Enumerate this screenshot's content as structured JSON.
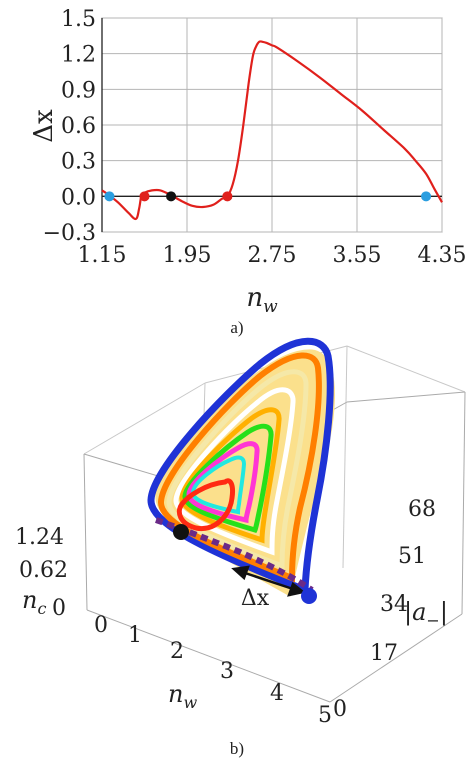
{
  "chart_data": [
    {
      "panel_label": "a)",
      "type": "line",
      "xlabel": "n",
      "xlabel_sub": "w",
      "ylabel": "Δx",
      "xlim": [
        1.15,
        4.35
      ],
      "ylim": [
        -0.3,
        1.5
      ],
      "x_ticks": [
        1.15,
        1.95,
        2.75,
        3.55,
        4.35
      ],
      "x_tick_labels": [
        "1.15",
        "1.95",
        "2.75",
        "3.55",
        "4.35"
      ],
      "y_ticks": [
        -0.3,
        0.0,
        0.3,
        0.6,
        0.9,
        1.2,
        1.5
      ],
      "y_tick_labels": [
        "−0.3",
        "0.0",
        "0.3",
        "0.6",
        "0.9",
        "1.2",
        "1.5"
      ],
      "grid": true,
      "series": [
        {
          "color": "#e0201c",
          "x": [
            1.15,
            1.2,
            1.3,
            1.4,
            1.47,
            1.5,
            1.52,
            1.55,
            1.62,
            1.7,
            1.8,
            1.9,
            2.0,
            2.1,
            2.2,
            2.28,
            2.33,
            2.38,
            2.43,
            2.48,
            2.53,
            2.57,
            2.6,
            2.63,
            2.66,
            2.7,
            2.75,
            2.8,
            3.0,
            3.2,
            3.4,
            3.6,
            3.8,
            4.0,
            4.1,
            4.2,
            4.28,
            4.35
          ],
          "y": [
            0.05,
            0.02,
            -0.05,
            -0.14,
            -0.19,
            -0.1,
            0.0,
            0.03,
            0.05,
            0.05,
            0.01,
            -0.04,
            -0.08,
            -0.09,
            -0.07,
            -0.02,
            0.0,
            0.1,
            0.3,
            0.6,
            0.95,
            1.18,
            1.26,
            1.3,
            1.3,
            1.29,
            1.27,
            1.25,
            1.13,
            1.0,
            0.86,
            0.72,
            0.56,
            0.4,
            0.3,
            0.19,
            0.06,
            -0.05
          ]
        }
      ],
      "points": [
        {
          "x": 1.22,
          "y": 0.0,
          "color": "#2a9ee0"
        },
        {
          "x": 1.55,
          "y": 0.0,
          "color": "#e0201c"
        },
        {
          "x": 1.8,
          "y": 0.0,
          "color": "#111111"
        },
        {
          "x": 2.33,
          "y": 0.0,
          "color": "#e0201c"
        },
        {
          "x": 4.2,
          "y": 0.0,
          "color": "#2a9ee0"
        }
      ]
    },
    {
      "panel_label": "b)",
      "type": "surface3d",
      "x_axis": {
        "label": "n",
        "label_sub": "w",
        "ticks": [
          "0",
          "1",
          "2",
          "3",
          "4",
          "5"
        ]
      },
      "y_axis": {
        "label": "|a",
        "label_sub": "−",
        "label_suffix": "|",
        "ticks": [
          "0",
          "17",
          "34",
          "51",
          "68"
        ]
      },
      "z_axis": {
        "label": "n",
        "label_sub": "c",
        "ticks": [
          "0",
          "0.62",
          "1.24"
        ]
      },
      "annotation": "Δx",
      "surface_color": "#fde89a",
      "loop_colors": [
        "#1f33d6",
        "#ff7f00",
        "#f5e8a8",
        "#ffffff",
        "#ffb000",
        "#26e01a",
        "#ff35d4",
        "#ff2a12",
        "#20e8e0"
      ],
      "markers": [
        {
          "color": "#111111"
        },
        {
          "color": "#1f33d6"
        }
      ]
    }
  ]
}
